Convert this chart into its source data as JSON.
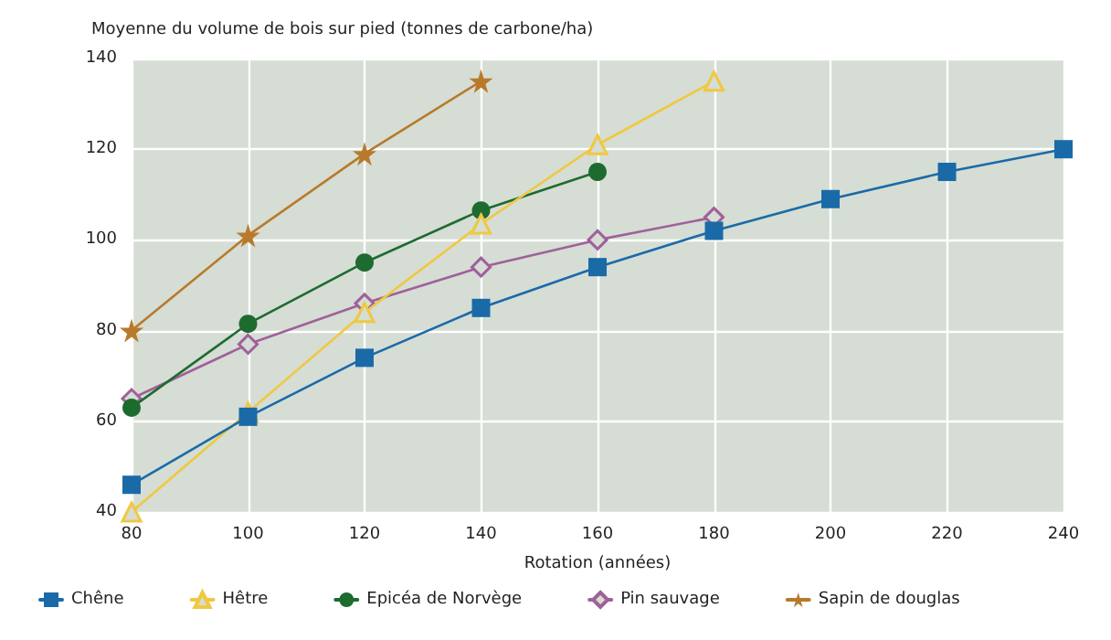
{
  "chart_data": {
    "type": "line",
    "ylabel": "Moyenne du volume de bois sur pied (tonnes de carbone/ha)",
    "xlabel": "Rotation (années)",
    "xlim": [
      80,
      240
    ],
    "xticks": [
      80,
      100,
      120,
      140,
      160,
      180,
      200,
      220,
      240
    ],
    "ylim": [
      40,
      140
    ],
    "yticks": [
      40,
      60,
      80,
      100,
      120,
      140
    ],
    "grid": true,
    "legend": "bottom",
    "series": [
      {
        "name": "Chêne",
        "color": "#1a6aa8",
        "marker": "square",
        "x": [
          80,
          100,
          120,
          140,
          160,
          180,
          200,
          220,
          240
        ],
        "values": [
          46,
          61,
          74,
          85,
          94,
          102,
          109,
          115,
          120
        ]
      },
      {
        "name": "Hêtre",
        "color": "#f0c840",
        "marker": "triangle",
        "x": [
          80,
          100,
          120,
          140,
          160,
          180
        ],
        "values": [
          40,
          62,
          84,
          103.5,
          121,
          135
        ]
      },
      {
        "name": "Epicéa de Norvège",
        "color": "#1e6b30",
        "marker": "circle",
        "x": [
          80,
          100,
          120,
          140,
          160
        ],
        "values": [
          63,
          81.5,
          95,
          106.5,
          115
        ]
      },
      {
        "name": "Pin sauvage",
        "color": "#a0609a",
        "marker": "diamond",
        "x": [
          80,
          100,
          120,
          140,
          160,
          180
        ],
        "values": [
          65,
          77,
          86,
          94,
          100,
          105
        ]
      },
      {
        "name": "Sapin de douglas",
        "color": "#b87a2a",
        "marker": "star",
        "x": [
          80,
          100,
          120,
          140
        ],
        "values": [
          80,
          101,
          119,
          135
        ]
      }
    ]
  }
}
